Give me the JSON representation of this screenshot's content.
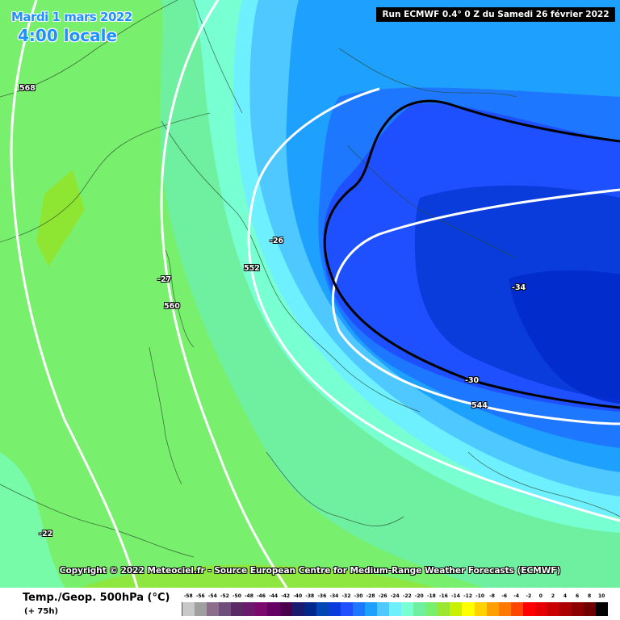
{
  "header": {
    "date": "Mardi 1 mars 2022",
    "time": "4:00 locale",
    "run": "Run ECMWF 0.4° 0 Z du Samedi 26 février 2022"
  },
  "copyright": "Copyright © 2022 Meteociel.fr - Source European Centre for Medium-Range Weather Forecasts (ECMWF)",
  "map_labels": {
    "geo_568": "568",
    "geo_560": "560",
    "geo_552": "552",
    "geo_544": "544",
    "temp_m26": "-26",
    "temp_m27": "-27",
    "temp_m22": "-22",
    "temp_m30": "-30",
    "temp_m34": "-34"
  },
  "legend": {
    "title": "Temp./Geop. 500hPa (°C)",
    "lead": "(+ 75h)",
    "values": [
      "-58",
      "-56",
      "-54",
      "-52",
      "-50",
      "-48",
      "-46",
      "-44",
      "-42",
      "-40",
      "-38",
      "-36",
      "-34",
      "-32",
      "-30",
      "-28",
      "-26",
      "-24",
      "-22",
      "-20",
      "-18",
      "-16",
      "-14",
      "-12",
      "-10",
      "-8",
      "-6",
      "-4",
      "-2",
      "0",
      "2",
      "4",
      "6",
      "8",
      "10"
    ],
    "colors": [
      "#c8c8c8",
      "#a0a0a0",
      "#8c6e8c",
      "#6e4e7a",
      "#5a2a64",
      "#6c1a6e",
      "#7a0a6e",
      "#640064",
      "#4a004a",
      "#1a1a6e",
      "#00288c",
      "#0046b4",
      "#0a3cdc",
      "#1e50ff",
      "#1e78ff",
      "#1ea0ff",
      "#4ec8ff",
      "#6ef0ff",
      "#78ffd2",
      "#6ef0a0",
      "#78f06e",
      "#9ae632",
      "#c8f000",
      "#ffff00",
      "#ffd200",
      "#ffa000",
      "#ff7800",
      "#ff4600",
      "#ff0000",
      "#e60000",
      "#c80000",
      "#aa0000",
      "#8c0000",
      "#6e0000",
      "#000000"
    ]
  }
}
